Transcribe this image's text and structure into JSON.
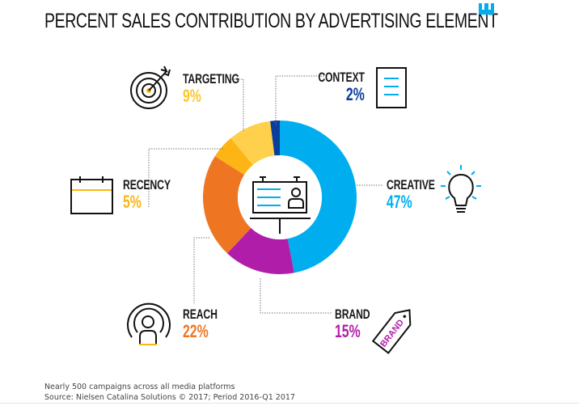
{
  "header": {
    "title": "PERCENT SALES CONTRIBUTION BY ADVERTISING ELEMENT",
    "logo_color": "#00AEEF"
  },
  "chart_data": {
    "type": "pie",
    "variant": "donut",
    "title": "PERCENT SALES CONTRIBUTION BY ADVERTISING ELEMENT",
    "categories": [
      "Creative",
      "Brand",
      "Reach",
      "Recency",
      "Targeting",
      "Context"
    ],
    "values": [
      47,
      15,
      22,
      5,
      9,
      2
    ],
    "unit": "%",
    "colors": [
      "#00AEEF",
      "#B01EA9",
      "#EE7623",
      "#FDB515",
      "#FFD04B",
      "#0B3D9B"
    ],
    "start_angle": "12 o'clock",
    "direction": "clockwise",
    "center_icon": "billboard-icon",
    "legend": "callout labels with icons"
  },
  "segments": {
    "targeting": {
      "label": "TARGETING",
      "value": "9%",
      "color": "#FFC72C",
      "icon": "target-icon"
    },
    "context": {
      "label": "CONTEXT",
      "value": "2%",
      "color": "#0B3D9B",
      "icon": "document-icon"
    },
    "creative": {
      "label": "CREATIVE",
      "value": "47%",
      "color": "#00AEEF",
      "icon": "lightbulb-icon"
    },
    "recency": {
      "label": "RECENCY",
      "value": "5%",
      "color": "#FDB515",
      "icon": "calendar-icon"
    },
    "reach": {
      "label": "REACH",
      "value": "22%",
      "color": "#EE7623",
      "icon": "broadcast-person-icon"
    },
    "brand": {
      "label": "BRAND",
      "value": "15%",
      "color": "#B01EA9",
      "icon": "brand-tag-icon",
      "tag_text": "BRAND"
    }
  },
  "footer": {
    "note": "Nearly 500 campaigns across all media platforms",
    "source": "Source: Nielsen Catalina Solutions © 2017; Period 2016-Q1 2017"
  }
}
